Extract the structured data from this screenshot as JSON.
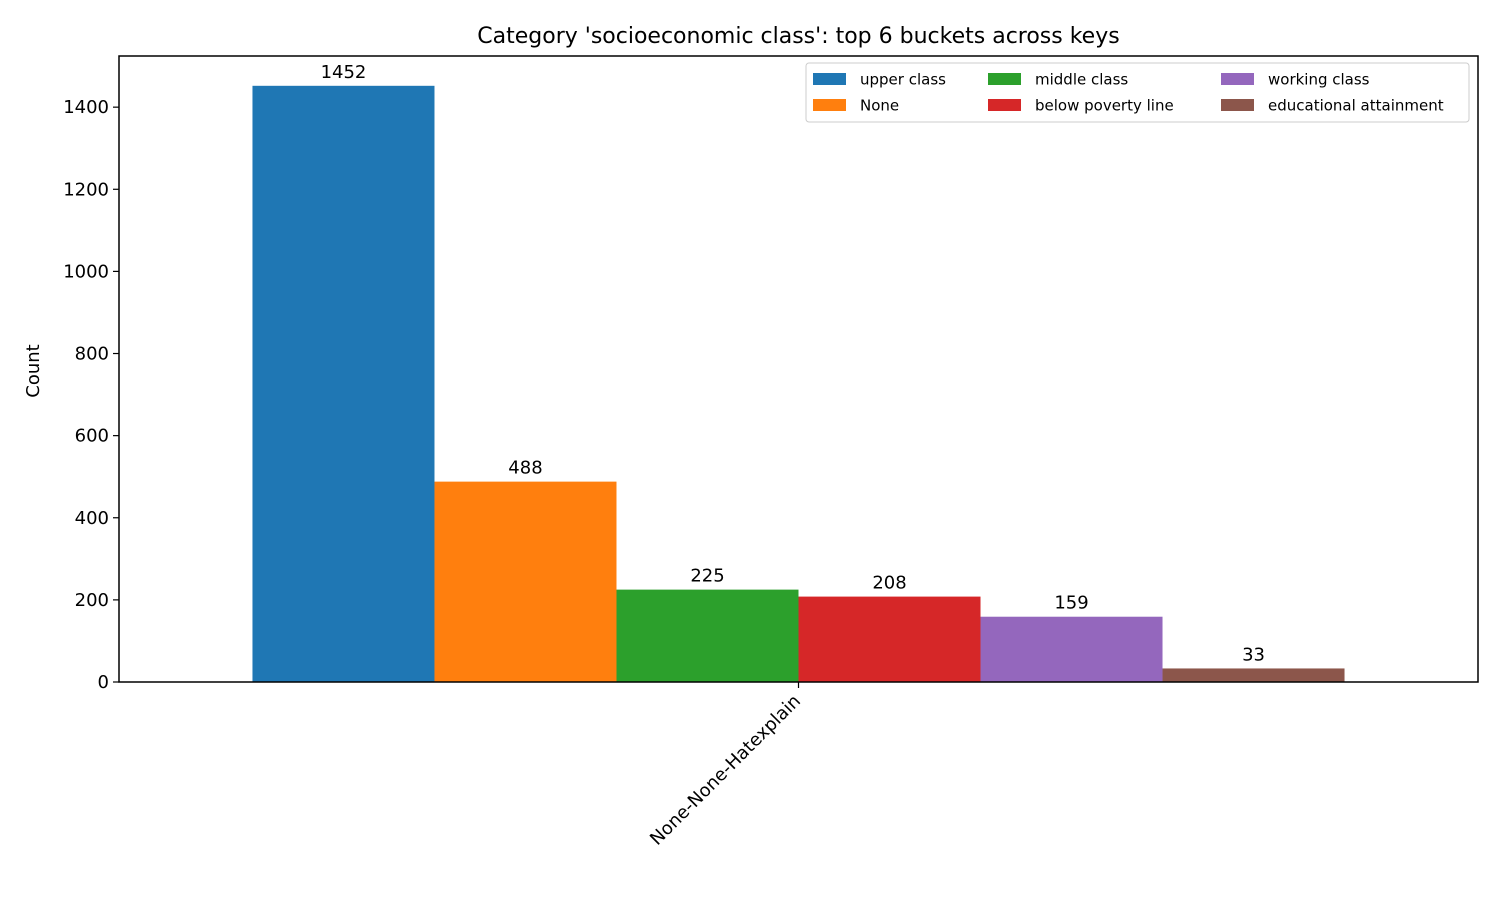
{
  "chart_data": {
    "type": "bar",
    "title": "Category 'socioeconomic class': top 6 buckets across keys",
    "xlabel": "",
    "ylabel": "Count",
    "categories": [
      "None-None-Hatexplain"
    ],
    "ylim": [
      0,
      1524.6
    ],
    "yticks": [
      0,
      200,
      400,
      600,
      800,
      1000,
      1200,
      1400
    ],
    "grid": false,
    "legend_position": "top-right",
    "legend_columns": 3,
    "series": [
      {
        "name": "upper class",
        "values": [
          1452
        ],
        "color": "#1f77b4"
      },
      {
        "name": "None",
        "values": [
          488
        ],
        "color": "#ff7f0e"
      },
      {
        "name": "middle class",
        "values": [
          225
        ],
        "color": "#2ca02c"
      },
      {
        "name": "below poverty line",
        "values": [
          208
        ],
        "color": "#d62728"
      },
      {
        "name": "working class",
        "values": [
          159
        ],
        "color": "#9467bd"
      },
      {
        "name": "educational attainment",
        "values": [
          33
        ],
        "color": "#8c564b"
      }
    ]
  }
}
